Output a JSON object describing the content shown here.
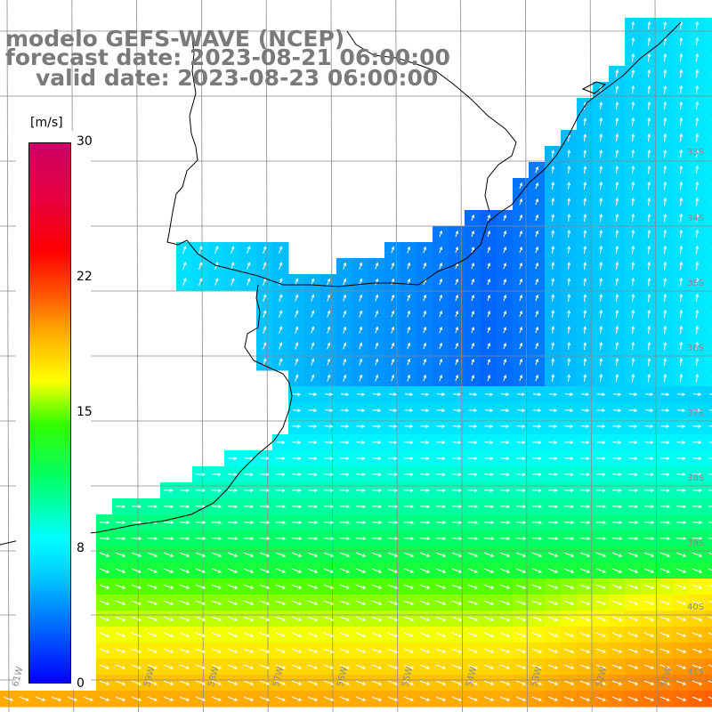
{
  "title": {
    "line1": "modelo GEFS-WAVE (NCEP)",
    "line2": "forecast date: 2023-08-21 06:00:00",
    "line3": "valid date: 2023-08-23 06:00:00"
  },
  "colorbar": {
    "unit": "[m/s]",
    "ticks": [
      "30",
      "22",
      "15",
      "8",
      "0"
    ],
    "tick_values": [
      30,
      22,
      15,
      8,
      0
    ],
    "range": [
      0,
      30
    ],
    "colors": [
      "#0000ff",
      "#00ccff",
      "#00ffff",
      "#33ff00",
      "#ffff00",
      "#ff5500",
      "#ff0000",
      "#cc0066"
    ]
  },
  "lat_labels": [
    "33S",
    "34S",
    "35S",
    "36S",
    "37S",
    "38S",
    "39S",
    "40S",
    "41S"
  ],
  "lon_labels": [
    "61W",
    "59W",
    "58W",
    "57W",
    "56W",
    "55W",
    "54W",
    "53W",
    "52W",
    "51W"
  ],
  "variable": "wind speed with direction arrows",
  "colors": {
    "title": "#7a7a7a",
    "coast": "#000000",
    "grid": "#888888",
    "arrows": "#ffffff"
  }
}
